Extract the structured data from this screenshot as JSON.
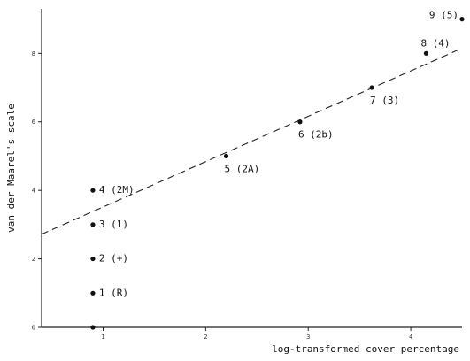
{
  "chart_data": {
    "type": "scatter",
    "title": "",
    "xlabel": "log-transformed cover percentage",
    "ylabel": "van der Maarel's scale",
    "xlim": [
      0.4,
      4.5
    ],
    "ylim": [
      0,
      9.3
    ],
    "x_ticks": [
      {
        "value": 1,
        "label": "1"
      },
      {
        "value": 2,
        "label": "2"
      },
      {
        "value": 3,
        "label": "3"
      },
      {
        "value": 4,
        "label": "4"
      }
    ],
    "y_ticks": [
      {
        "value": 0,
        "label": "0"
      },
      {
        "value": 2,
        "label": "2"
      },
      {
        "value": 4,
        "label": "4"
      },
      {
        "value": 6,
        "label": "6"
      },
      {
        "value": 8,
        "label": "8"
      }
    ],
    "points": [
      {
        "x": 0.9,
        "y": 0,
        "label": ""
      },
      {
        "x": 0.9,
        "y": 1,
        "label": "1 (R)"
      },
      {
        "x": 0.9,
        "y": 2,
        "label": "2 (+)"
      },
      {
        "x": 0.9,
        "y": 3,
        "label": "3 (1)"
      },
      {
        "x": 0.9,
        "y": 4,
        "label": "4 (2M)"
      },
      {
        "x": 2.2,
        "y": 5,
        "label": "5 (2A)"
      },
      {
        "x": 2.92,
        "y": 6,
        "label": "6 (2b)"
      },
      {
        "x": 3.62,
        "y": 7,
        "label": "7 (3)"
      },
      {
        "x": 4.15,
        "y": 8,
        "label": "8 (4)"
      },
      {
        "x": 4.5,
        "y": 9,
        "label": "9 (5)"
      }
    ],
    "fit_line": {
      "x": [
        0.4,
        4.5
      ],
      "y": [
        2.72,
        8.15
      ]
    },
    "grid": false,
    "legend": "none"
  }
}
